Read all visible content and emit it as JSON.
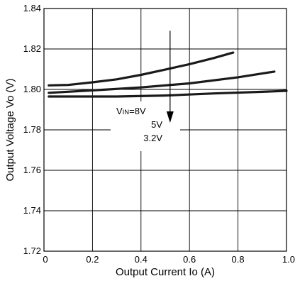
{
  "chart_data": {
    "type": "line",
    "title": "",
    "xlabel": "Output Current Io (A)",
    "ylabel": "Output Voltage Vo (V)",
    "xlim": [
      0,
      1.0
    ],
    "ylim": [
      1.72,
      1.84
    ],
    "x_ticks": [
      "0",
      "0.2",
      "0.4",
      "0.6",
      "0.8",
      "1.0"
    ],
    "y_ticks": [
      "1.72",
      "1.74",
      "1.76",
      "1.78",
      "1.80",
      "1.82",
      "1.84"
    ],
    "grid": true,
    "series": [
      {
        "name": "8V",
        "x": [
          0.02,
          0.1,
          0.2,
          0.3,
          0.4,
          0.5,
          0.6,
          0.7,
          0.78
        ],
        "y": [
          1.802,
          1.8022,
          1.8035,
          1.805,
          1.8072,
          1.8098,
          1.8125,
          1.8155,
          1.8182
        ]
      },
      {
        "name": "5V",
        "x": [
          0.02,
          0.2,
          0.4,
          0.6,
          0.8,
          0.95
        ],
        "y": [
          1.7983,
          1.7995,
          1.801,
          1.803,
          1.806,
          1.8088
        ]
      },
      {
        "name": "3.2V",
        "x": [
          0.02,
          0.3,
          0.5,
          0.7,
          0.9,
          1.0
        ],
        "y": [
          1.7965,
          1.7965,
          1.797,
          1.798,
          1.7988,
          1.7993
        ]
      }
    ],
    "annotation": {
      "vin_main": "V",
      "vin_sub": "IN",
      "vin_rest": "=8V",
      "labels": [
        "5V",
        "3.2V"
      ],
      "arrow_x": 0.52,
      "arrow_from": 1.829,
      "arrow_to": 1.7835
    }
  }
}
